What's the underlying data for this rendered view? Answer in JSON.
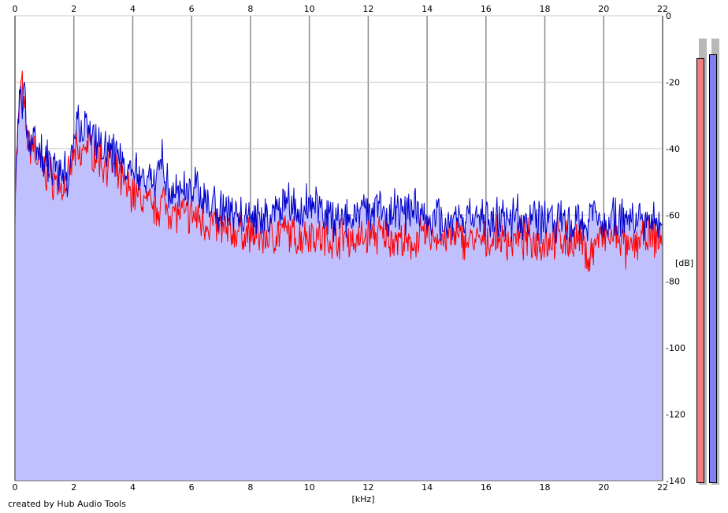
{
  "chart_data": {
    "type": "area",
    "xlabel": "[kHz]",
    "ylabel": "[dB]",
    "xlim": [
      0,
      22
    ],
    "ylim": [
      -140,
      0
    ],
    "x_ticks": [
      "0",
      "2",
      "4",
      "6",
      "8",
      "10",
      "12",
      "14",
      "16",
      "18",
      "20",
      "22"
    ],
    "y_ticks": [
      "0",
      "-20",
      "-40",
      "-60",
      "-80",
      "-100",
      "-120",
      "-140"
    ],
    "grid": true,
    "background_color": "#ffffff",
    "fill_color": "#c0c0ff",
    "series": [
      {
        "color": "#ff0000",
        "x": [
          0,
          0.08,
          0.15,
          0.2,
          0.25,
          0.3,
          0.35,
          0.4,
          0.5,
          0.6,
          0.7,
          0.8,
          0.9,
          1.0,
          1.2,
          1.4,
          1.6,
          1.8,
          2.0,
          2.1,
          2.2,
          2.4,
          2.6,
          2.8,
          3.0,
          3.2,
          3.4,
          3.6,
          3.8,
          4.0,
          4.4,
          4.8,
          5.0,
          5.2,
          5.6,
          6.0,
          6.4,
          6.8,
          7.2,
          7.6,
          8.0,
          8.4,
          8.8,
          9.2,
          9.6,
          10.0,
          10.4,
          10.8,
          11.2,
          11.6,
          12.0,
          12.4,
          12.8,
          13.2,
          13.4,
          13.6,
          14.0,
          14.4,
          14.8,
          15.2,
          15.6,
          16.0,
          16.4,
          16.8,
          17.2,
          17.6,
          18.0,
          18.4,
          18.8,
          19.2,
          19.5,
          19.8,
          20.2,
          20.6,
          20.8,
          21.2,
          21.6,
          22
        ],
        "y": [
          -53,
          -38,
          -28,
          -19,
          -22,
          -29,
          -30,
          -35,
          -40,
          -38,
          -42,
          -45,
          -44,
          -47,
          -48,
          -50,
          -52,
          -50,
          -42,
          -41,
          -44,
          -38,
          -40,
          -42,
          -45,
          -44,
          -47,
          -50,
          -52,
          -53,
          -56,
          -58,
          -56,
          -58,
          -60,
          -60,
          -62,
          -63,
          -65,
          -65,
          -66,
          -67,
          -66,
          -65,
          -67,
          -65,
          -67,
          -67,
          -66,
          -68,
          -66,
          -66,
          -67,
          -68,
          -71,
          -67,
          -66,
          -67,
          -67,
          -67,
          -68,
          -68,
          -67,
          -68,
          -67,
          -68,
          -68,
          -67,
          -68,
          -68,
          -73,
          -67,
          -67,
          -67,
          -72,
          -67,
          -67,
          -67
        ]
      },
      {
        "color": "#0000cc",
        "x": [
          0,
          0.08,
          0.15,
          0.2,
          0.25,
          0.3,
          0.35,
          0.4,
          0.5,
          0.6,
          0.7,
          0.8,
          0.9,
          1.0,
          1.2,
          1.4,
          1.6,
          1.8,
          2.0,
          2.1,
          2.2,
          2.4,
          2.6,
          2.8,
          3.0,
          3.2,
          3.4,
          3.6,
          3.8,
          4.0,
          4.4,
          4.8,
          5.0,
          5.2,
          5.6,
          6.0,
          6.4,
          6.8,
          7.2,
          7.6,
          8.0,
          8.4,
          8.8,
          9.2,
          9.6,
          10.0,
          10.4,
          10.8,
          11.2,
          11.6,
          12.0,
          12.4,
          12.8,
          13.2,
          13.4,
          13.6,
          14.0,
          14.4,
          14.8,
          15.2,
          15.6,
          16.0,
          16.4,
          16.8,
          17.2,
          17.6,
          18.0,
          18.4,
          18.8,
          19.2,
          19.5,
          19.8,
          20.2,
          20.6,
          20.8,
          21.2,
          21.6,
          22
        ],
        "y": [
          -57,
          -35,
          -26,
          -23,
          -25,
          -22,
          -28,
          -33,
          -37,
          -36,
          -40,
          -43,
          -41,
          -45,
          -44,
          -46,
          -49,
          -47,
          -38,
          -26,
          -37,
          -33,
          -35,
          -36,
          -40,
          -38,
          -42,
          -44,
          -46,
          -48,
          -50,
          -48,
          -40,
          -52,
          -53,
          -52,
          -55,
          -57,
          -58,
          -60,
          -61,
          -60,
          -59,
          -56,
          -60,
          -57,
          -59,
          -61,
          -60,
          -61,
          -57,
          -60,
          -58,
          -60,
          -60,
          -59,
          -61,
          -61,
          -62,
          -61,
          -62,
          -61,
          -62,
          -61,
          -61,
          -62,
          -61,
          -62,
          -61,
          -62,
          -61,
          -61,
          -62,
          -61,
          -61,
          -62,
          -61,
          -62
        ]
      }
    ]
  },
  "credit": "created by Hub Audio Tools",
  "meters": [
    {
      "color": "#f08080",
      "level": 0.95
    },
    {
      "color": "#8080f0",
      "level": 0.96
    }
  ]
}
